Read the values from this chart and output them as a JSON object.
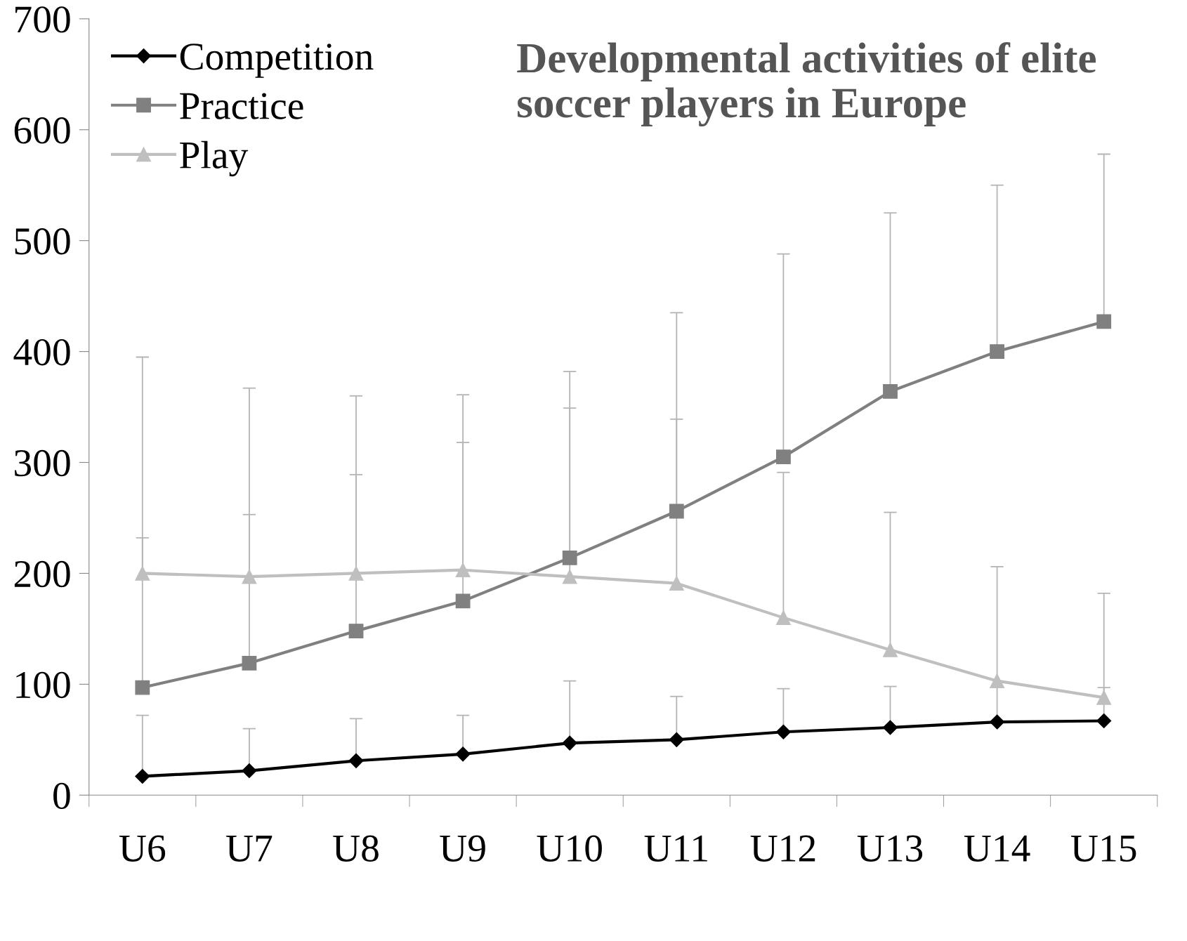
{
  "chart_data": {
    "type": "line",
    "title": "Developmental activities of elite soccer players in Europe",
    "categories": [
      "U6",
      "U7",
      "U8",
      "U9",
      "U10",
      "U11",
      "U12",
      "U13",
      "U14",
      "U15"
    ],
    "ylim": [
      0,
      700
    ],
    "yticks": [
      0,
      100,
      200,
      300,
      400,
      500,
      600,
      700
    ],
    "grid": false,
    "legend": "top left",
    "series": [
      {
        "name": "Competition",
        "color": "#000000",
        "marker": "diamond",
        "values": [
          17,
          22,
          31,
          37,
          47,
          50,
          57,
          61,
          66,
          67
        ],
        "errors": [
          [
            17,
            72
          ],
          [
            22,
            60
          ],
          [
            31,
            69
          ],
          [
            37,
            72
          ],
          [
            47,
            103
          ],
          [
            50,
            89
          ],
          [
            57,
            96
          ],
          [
            61,
            98
          ],
          [
            66,
            98
          ],
          [
            67,
            97
          ]
        ]
      },
      {
        "name": "Practice",
        "color": "#808080",
        "marker": "square",
        "values": [
          97,
          119,
          148,
          175,
          214,
          256,
          305,
          364,
          400,
          427
        ],
        "errors": [
          [
            97,
            232
          ],
          [
            119,
            253
          ],
          [
            148,
            289
          ],
          [
            175,
            318
          ],
          [
            214,
            382
          ],
          [
            256,
            435
          ],
          [
            305,
            488
          ],
          [
            364,
            525
          ],
          [
            400,
            550
          ],
          [
            427,
            578
          ]
        ]
      },
      {
        "name": "Play",
        "color": "#bfbfbf",
        "marker": "triangle",
        "values": [
          200,
          197,
          200,
          203,
          197,
          191,
          160,
          131,
          103,
          88
        ],
        "errors": [
          [
            200,
            395
          ],
          [
            197,
            367
          ],
          [
            200,
            360
          ],
          [
            203,
            361
          ],
          [
            197,
            349
          ],
          [
            191,
            339
          ],
          [
            160,
            291
          ],
          [
            131,
            255
          ],
          [
            103,
            206
          ],
          [
            88,
            182
          ]
        ]
      }
    ]
  }
}
